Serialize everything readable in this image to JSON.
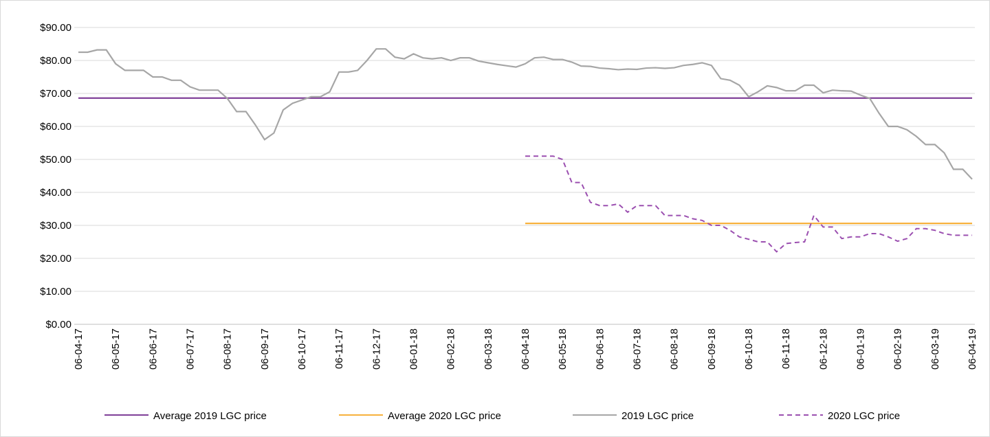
{
  "chart_data": {
    "type": "line",
    "categories": [
      "06-04-17",
      null,
      null,
      null,
      "06-05-17",
      null,
      null,
      null,
      "06-06-17",
      null,
      null,
      null,
      "06-07-17",
      null,
      null,
      null,
      "06-08-17",
      null,
      null,
      null,
      "06-09-17",
      null,
      null,
      null,
      "06-10-17",
      null,
      null,
      null,
      "06-11-17",
      null,
      null,
      null,
      "06-12-17",
      null,
      null,
      null,
      "06-01-18",
      null,
      null,
      null,
      "06-02-18",
      null,
      null,
      null,
      "06-03-18",
      null,
      null,
      null,
      "06-04-18",
      null,
      null,
      null,
      "06-05-18",
      null,
      null,
      null,
      "06-06-18",
      null,
      null,
      null,
      "06-07-18",
      null,
      null,
      null,
      "06-08-18",
      null,
      null,
      null,
      "06-09-18",
      null,
      null,
      null,
      "06-10-18",
      null,
      null,
      null,
      "06-11-18",
      null,
      null,
      null,
      "06-12-18",
      null,
      null,
      null,
      "06-01-19",
      null,
      null,
      null,
      "06-02-19",
      null,
      null,
      null,
      "06-03-19",
      null,
      null,
      null,
      "06-04-19"
    ],
    "series": [
      {
        "name": "Average 2019 LGC price",
        "color": "#7f3f98",
        "dash": false,
        "values": [
          68.6,
          68.6,
          68.6,
          68.6,
          68.6,
          68.6,
          68.6,
          68.6,
          68.6,
          68.6,
          68.6,
          68.6,
          68.6,
          68.6,
          68.6,
          68.6,
          68.6,
          68.6,
          68.6,
          68.6,
          68.6,
          68.6,
          68.6,
          68.6,
          68.6,
          68.6,
          68.6,
          68.6,
          68.6,
          68.6,
          68.6,
          68.6,
          68.6,
          68.6,
          68.6,
          68.6,
          68.6,
          68.6,
          68.6,
          68.6,
          68.6,
          68.6,
          68.6,
          68.6,
          68.6,
          68.6,
          68.6,
          68.6,
          68.6,
          68.6,
          68.6,
          68.6,
          68.6,
          68.6,
          68.6,
          68.6,
          68.6,
          68.6,
          68.6,
          68.6,
          68.6,
          68.6,
          68.6,
          68.6,
          68.6,
          68.6,
          68.6,
          68.6,
          68.6,
          68.6,
          68.6,
          68.6,
          68.6,
          68.6,
          68.6,
          68.6,
          68.6,
          68.6,
          68.6,
          68.6,
          68.6,
          68.6,
          68.6,
          68.6,
          68.6,
          68.6,
          68.6,
          68.6,
          68.6,
          68.6,
          68.6,
          68.6,
          68.6,
          68.6,
          68.6,
          68.6,
          68.6
        ]
      },
      {
        "name": "Average 2020 LGC price",
        "color": "#f7b13c",
        "dash": false,
        "values": [
          null,
          null,
          null,
          null,
          null,
          null,
          null,
          null,
          null,
          null,
          null,
          null,
          null,
          null,
          null,
          null,
          null,
          null,
          null,
          null,
          null,
          null,
          null,
          null,
          null,
          null,
          null,
          null,
          null,
          null,
          null,
          null,
          null,
          null,
          null,
          null,
          null,
          null,
          null,
          null,
          null,
          null,
          null,
          null,
          null,
          null,
          null,
          null,
          30.6,
          30.6,
          30.6,
          30.6,
          30.6,
          30.6,
          30.6,
          30.6,
          30.6,
          30.6,
          30.6,
          30.6,
          30.6,
          30.6,
          30.6,
          30.6,
          30.6,
          30.6,
          30.6,
          30.6,
          30.6,
          30.6,
          30.6,
          30.6,
          30.6,
          30.6,
          30.6,
          30.6,
          30.6,
          30.6,
          30.6,
          30.6,
          30.6,
          30.6,
          30.6,
          30.6,
          30.6,
          30.6,
          30.6,
          30.6,
          30.6,
          30.6,
          30.6,
          30.6,
          30.6,
          30.6,
          30.6,
          30.6,
          30.6
        ]
      },
      {
        "name": "2019 LGC price",
        "color": "#a6a6a6",
        "dash": false,
        "values": [
          82.5,
          82.5,
          83.2,
          83.2,
          79,
          77,
          77,
          77,
          75,
          75,
          74,
          74,
          72,
          71,
          71,
          71,
          68.5,
          64.5,
          64.5,
          60.5,
          56,
          58,
          65,
          67,
          68,
          69,
          69,
          70.5,
          76.5,
          76.5,
          77,
          80,
          83.5,
          83.5,
          81,
          80.5,
          82,
          80.8,
          80.5,
          80.8,
          80,
          80.8,
          80.8,
          79.8,
          79.3,
          78.8,
          78.4,
          78,
          79,
          80.8,
          81,
          80.3,
          80.3,
          79.5,
          78.3,
          78.2,
          77.7,
          77.5,
          77.2,
          77.4,
          77.3,
          77.7,
          77.8,
          77.6,
          77.8,
          78.5,
          78.8,
          79.3,
          78.5,
          74.5,
          74,
          72.5,
          69,
          70.5,
          72.3,
          71.8,
          70.8,
          70.8,
          72.5,
          72.5,
          70.2,
          71,
          70.8,
          70.7,
          69.5,
          68.5,
          64,
          60,
          60,
          59,
          57,
          54.5,
          54.5,
          52,
          47,
          47,
          44
        ]
      },
      {
        "name": "2020 LGC price",
        "color": "#9b4fb0",
        "dash": true,
        "values": [
          null,
          null,
          null,
          null,
          null,
          null,
          null,
          null,
          null,
          null,
          null,
          null,
          null,
          null,
          null,
          null,
          null,
          null,
          null,
          null,
          null,
          null,
          null,
          null,
          null,
          null,
          null,
          null,
          null,
          null,
          null,
          null,
          null,
          null,
          null,
          null,
          null,
          null,
          null,
          null,
          null,
          null,
          null,
          null,
          null,
          null,
          null,
          null,
          51,
          51,
          51,
          51,
          50,
          43,
          43,
          37,
          36,
          36,
          36.5,
          34,
          36,
          36,
          36,
          33,
          33,
          33,
          32,
          31.5,
          30,
          30,
          28.5,
          26.5,
          25.8,
          25,
          25,
          22,
          24.5,
          24.8,
          25,
          33,
          29.5,
          29.5,
          26,
          26.5,
          26.5,
          27.5,
          27.5,
          26.5,
          25.2,
          26,
          29,
          29,
          28.5,
          27.5,
          27,
          27,
          27
        ]
      }
    ],
    "ylim": [
      0,
      90
    ],
    "yticks": [
      {
        "value": 0,
        "label": "$0.00"
      },
      {
        "value": 10,
        "label": "$10.00"
      },
      {
        "value": 20,
        "label": "$20.00"
      },
      {
        "value": 30,
        "label": "$30.00"
      },
      {
        "value": 40,
        "label": "$40.00"
      },
      {
        "value": 50,
        "label": "$50.00"
      },
      {
        "value": 60,
        "label": "$60.00"
      },
      {
        "value": 70,
        "label": "$70.00"
      },
      {
        "value": 80,
        "label": "$80.00"
      },
      {
        "value": 90,
        "label": "$90.00"
      }
    ],
    "grid": true,
    "legend": "bottom"
  }
}
